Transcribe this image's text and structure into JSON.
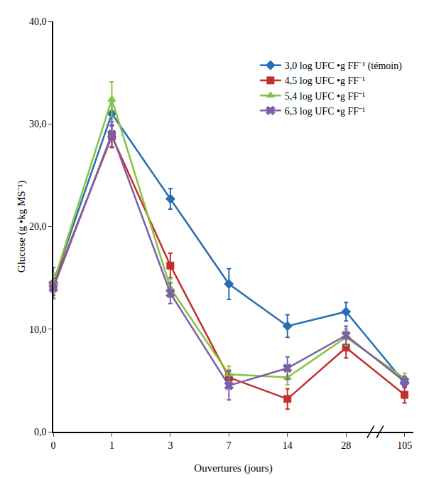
{
  "chart_data": {
    "type": "line",
    "x_label": "Ouvertures (jours)",
    "y_label": "Glucose (g •kg MS⁻¹)",
    "categories": [
      "0",
      "1",
      "3",
      "7",
      "14",
      "28",
      "105"
    ],
    "ylim": [
      0,
      40
    ],
    "yticks": [
      {
        "value": 0,
        "label": "0,0"
      },
      {
        "value": 10,
        "label": "10,0"
      },
      {
        "value": 20,
        "label": "20,0"
      },
      {
        "value": 30,
        "label": "30,0"
      },
      {
        "value": 40,
        "label": "40,0"
      }
    ],
    "grid": false,
    "legend": "upper right",
    "series": [
      {
        "name": "3,0 log UFC •g FF⁻¹ (témoin)",
        "color": "#2a6db5",
        "marker": "diamond",
        "values": [
          14.5,
          31.0,
          22.7,
          14.4,
          10.3,
          11.7,
          4.8
        ],
        "errors": [
          1.5,
          1.2,
          1.0,
          1.5,
          1.1,
          0.9,
          0.5
        ]
      },
      {
        "name": "4,5 log UFC •g FF⁻¹",
        "color": "#c0312b",
        "marker": "square",
        "values": [
          14.3,
          28.8,
          16.2,
          5.3,
          3.2,
          8.2,
          3.6
        ],
        "errors": [
          1.0,
          1.1,
          1.2,
          0.7,
          1.0,
          1.0,
          0.8
        ]
      },
      {
        "name": "5,4 log UFC •g FF⁻¹",
        "color": "#86c440",
        "marker": "triangle-up",
        "values": [
          14.5,
          32.4,
          14.0,
          5.6,
          5.3,
          9.2,
          5.2
        ],
        "errors": [
          1.0,
          1.7,
          0.9,
          0.8,
          0.7,
          0.8,
          0.5
        ]
      },
      {
        "name": "6,3 log UFC •g FF⁻¹",
        "color": "#7d5fa8",
        "marker": "x",
        "values": [
          14.0,
          29.0,
          13.5,
          4.5,
          6.2,
          9.4,
          4.9
        ],
        "errors": [
          1.0,
          1.2,
          1.0,
          1.4,
          1.1,
          0.9,
          0.5
        ]
      }
    ]
  }
}
